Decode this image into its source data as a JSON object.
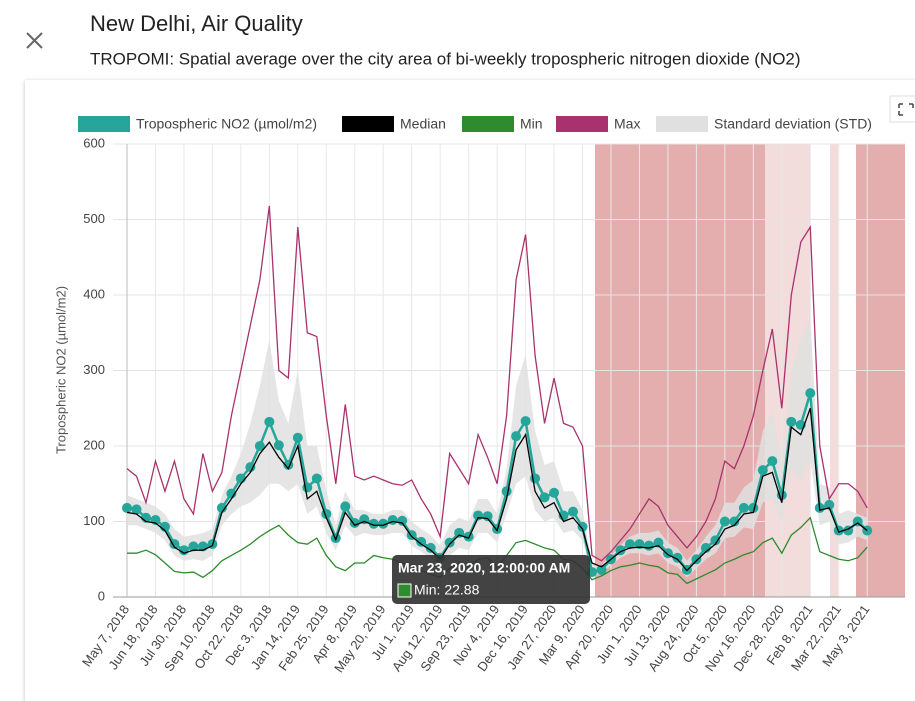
{
  "header": {
    "title": "New Delhi, Air Quality",
    "subtitle": "TROPOMI: Spatial average over the city area of bi-weekly tropospheric nitrogen dioxide (NO2)"
  },
  "chart_data": {
    "type": "line",
    "ylabel": "Tropospheric NO2 (µmol/m2)",
    "ylim": [
      0,
      600
    ],
    "yticks": [
      0,
      100,
      200,
      300,
      400,
      500,
      600
    ],
    "grid": true,
    "categories": [
      "May 7, 2018",
      null,
      null,
      "Jun 18, 2018",
      null,
      null,
      "Jul 30, 2018",
      null,
      null,
      "Sep 10, 2018",
      null,
      null,
      "Oct 22, 2018",
      null,
      null,
      "Dec 3, 2018",
      null,
      null,
      "Jan 14, 2019",
      null,
      null,
      "Feb 25, 2019",
      null,
      null,
      "Apr 8, 2019",
      null,
      null,
      "May 20, 2019",
      null,
      null,
      "Jul 1, 2019",
      null,
      null,
      "Aug 12, 2019",
      null,
      null,
      "Sep 23, 2019",
      null,
      null,
      "Nov 4, 2019",
      null,
      null,
      "Dec 16, 2019",
      null,
      null,
      "Jan 27, 2020",
      null,
      null,
      "Mar 9, 2020",
      null,
      null,
      "Apr 20, 2020",
      null,
      null,
      "Jun 1, 2020",
      null,
      null,
      "Jul 13, 2020",
      null,
      null,
      "Aug 24, 2020",
      null,
      null,
      "Oct 5, 2020",
      null,
      null,
      "Nov 16, 2020",
      null,
      null,
      "Dec 28, 2020",
      null,
      null,
      "Feb 8, 2021",
      null,
      null,
      "Mar 22, 2021",
      null,
      null,
      "May 3, 2021"
    ],
    "series": [
      {
        "name": "Tropospheric NO2 (µmol/m2)",
        "color": "#26a69a",
        "markers": true,
        "values": [
          118,
          116,
          105,
          102,
          93,
          70,
          62,
          67,
          67,
          70,
          118,
          137,
          157,
          172,
          200,
          232,
          201,
          175,
          211,
          145,
          157,
          110,
          78,
          120,
          98,
          103,
          97,
          97,
          102,
          101,
          82,
          73,
          65,
          52,
          72,
          85,
          80,
          108,
          107,
          90,
          140,
          213,
          233,
          157,
          132,
          138,
          108,
          113,
          93,
          33,
          36,
          50,
          62,
          70,
          70,
          68,
          72,
          58,
          52,
          36,
          50,
          65,
          75,
          100,
          100,
          118,
          118,
          168,
          180,
          135,
          232,
          228,
          270,
          118,
          122,
          88,
          88,
          100,
          88
        ]
      },
      {
        "name": "Median",
        "color": "#000000",
        "values": [
          112,
          110,
          100,
          98,
          88,
          66,
          58,
          62,
          62,
          68,
          112,
          130,
          150,
          165,
          190,
          205,
          185,
          170,
          200,
          130,
          140,
          105,
          76,
          112,
          95,
          100,
          95,
          95,
          100,
          98,
          80,
          70,
          62,
          50,
          70,
          82,
          78,
          105,
          104,
          88,
          130,
          195,
          215,
          140,
          118,
          125,
          100,
          105,
          90,
          45,
          40,
          50,
          60,
          65,
          66,
          65,
          68,
          56,
          50,
          35,
          48,
          60,
          70,
          90,
          95,
          110,
          112,
          160,
          165,
          125,
          225,
          215,
          250,
          115,
          118,
          86,
          90,
          98,
          88
        ]
      },
      {
        "name": "Min",
        "color": "#2e8b2e",
        "values": [
          58,
          58,
          62,
          56,
          45,
          34,
          32,
          33,
          26,
          35,
          48,
          55,
          62,
          70,
          80,
          88,
          95,
          82,
          72,
          70,
          78,
          55,
          40,
          35,
          45,
          45,
          55,
          52,
          50,
          45,
          40,
          35,
          30,
          26,
          38,
          45,
          40,
          50,
          52,
          40,
          55,
          72,
          75,
          70,
          65,
          62,
          50,
          48,
          38,
          22.88,
          28,
          35,
          40,
          42,
          45,
          42,
          40,
          32,
          30,
          18,
          24,
          30,
          36,
          45,
          50,
          56,
          60,
          72,
          78,
          58,
          82,
          92,
          105,
          60,
          55,
          50,
          48,
          52,
          66
        ]
      },
      {
        "name": "Max",
        "color": "#a8326e",
        "values": [
          170,
          160,
          125,
          180,
          140,
          180,
          130,
          110,
          190,
          140,
          165,
          240,
          300,
          360,
          420,
          518,
          300,
          290,
          490,
          350,
          345,
          240,
          150,
          255,
          160,
          155,
          160,
          155,
          150,
          148,
          155,
          130,
          110,
          80,
          190,
          170,
          150,
          215,
          185,
          150,
          240,
          420,
          480,
          320,
          230,
          290,
          230,
          225,
          200,
          55,
          48,
          60,
          75,
          90,
          110,
          130,
          120,
          95,
          80,
          65,
          80,
          100,
          130,
          180,
          170,
          200,
          240,
          300,
          355,
          250,
          400,
          470,
          490,
          200,
          130,
          150,
          150,
          140,
          118
        ]
      },
      {
        "name": "Standard deviation (STD)",
        "color": "#e0e0e0",
        "band": true,
        "upper": [
          135,
          130,
          125,
          120,
          110,
          90,
          80,
          82,
          85,
          90,
          135,
          160,
          190,
          230,
          280,
          340,
          260,
          230,
          300,
          200,
          200,
          140,
          95,
          140,
          115,
          115,
          110,
          110,
          115,
          115,
          100,
          90,
          82,
          68,
          95,
          105,
          100,
          130,
          130,
          110,
          170,
          280,
          320,
          220,
          175,
          180,
          140,
          140,
          115,
          45,
          42,
          55,
          68,
          80,
          85,
          85,
          88,
          72,
          65,
          48,
          62,
          80,
          95,
          125,
          125,
          145,
          155,
          220,
          245,
          175,
          300,
          340,
          370,
          150,
          145,
          110,
          115,
          110,
          105
        ],
        "lower": [
          95,
          95,
          90,
          85,
          75,
          55,
          48,
          50,
          48,
          55,
          95,
          110,
          120,
          125,
          135,
          150,
          150,
          140,
          150,
          110,
          120,
          85,
          62,
          95,
          80,
          85,
          82,
          82,
          85,
          85,
          68,
          60,
          52,
          40,
          55,
          65,
          62,
          85,
          85,
          72,
          110,
          150,
          160,
          115,
          100,
          105,
          85,
          88,
          75,
          28,
          32,
          42,
          52,
          58,
          58,
          55,
          58,
          45,
          40,
          26,
          38,
          50,
          58,
          78,
          80,
          92,
          90,
          125,
          130,
          100,
          170,
          155,
          180,
          95,
          100,
          70,
          72,
          80,
          75
        ]
      }
    ],
    "tooltip": {
      "title": "Mar 23, 2020, 12:00:00 AM",
      "text": "Min: 22.88"
    }
  }
}
